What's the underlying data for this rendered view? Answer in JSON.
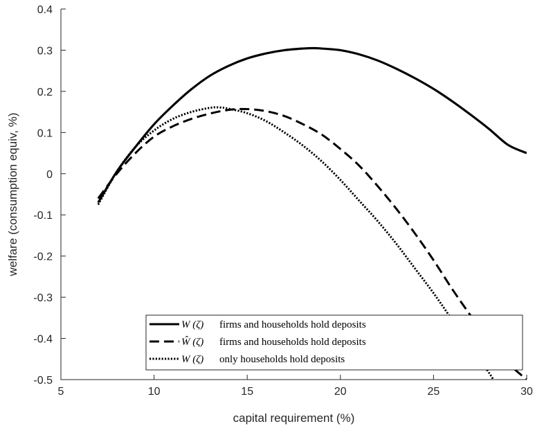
{
  "chart_data": {
    "type": "line",
    "title": "",
    "xlabel": "capital requirement (%)",
    "ylabel": "welfare (consumption equiv, %)",
    "xlim": [
      5,
      30
    ],
    "ylim": [
      -0.5,
      0.4
    ],
    "xticks": [
      5,
      10,
      15,
      20,
      25,
      30
    ],
    "xtick_labels": [
      "5",
      "10",
      "15",
      "20",
      "25",
      "30"
    ],
    "yticks": [
      -0.5,
      -0.4,
      -0.3,
      -0.2,
      -0.1,
      0,
      0.1,
      0.2,
      0.3,
      0.4
    ],
    "ytick_labels": [
      "-0.5",
      "-0.4",
      "-0.3",
      "-0.2",
      "-0.1",
      "0",
      "0.1",
      "0.2",
      "0.3",
      "0.4"
    ],
    "grid": false,
    "legend_position": "bottom-right",
    "series": [
      {
        "name": "W (ζ) firms and households hold deposits",
        "legend_math": "W (ζ)",
        "legend_text": "firms and households hold deposits",
        "style": "solid",
        "color": "#000000",
        "x": [
          7,
          8,
          9,
          10,
          11,
          12,
          13,
          14,
          15,
          16,
          17,
          18,
          18.6,
          19,
          20,
          21,
          22,
          23,
          24,
          25,
          26,
          27,
          28,
          29,
          30
        ],
        "y": [
          -0.07,
          0.005,
          0.065,
          0.12,
          0.165,
          0.205,
          0.238,
          0.262,
          0.28,
          0.292,
          0.3,
          0.304,
          0.305,
          0.304,
          0.3,
          0.29,
          0.275,
          0.255,
          0.232,
          0.206,
          0.176,
          0.143,
          0.108,
          0.07,
          0.05
        ]
      },
      {
        "name": "W-hat (ζ) firms and households hold deposits",
        "legend_math": "Ŵ (ζ)",
        "legend_text": "firms and households hold deposits",
        "style": "dashed",
        "color": "#000000",
        "x": [
          7,
          8,
          9,
          10,
          11,
          12,
          13,
          14,
          15,
          16,
          17,
          18,
          19,
          20,
          21,
          22,
          23,
          24,
          25,
          26,
          27,
          28,
          29,
          30
        ],
        "y": [
          -0.06,
          0.0,
          0.05,
          0.09,
          0.115,
          0.133,
          0.146,
          0.155,
          0.157,
          0.152,
          0.14,
          0.12,
          0.095,
          0.06,
          0.02,
          -0.03,
          -0.085,
          -0.145,
          -0.21,
          -0.28,
          -0.345,
          -0.405,
          -0.46,
          -0.5
        ]
      },
      {
        "name": "W (ζ) only households hold deposits",
        "legend_math": "W (ζ)",
        "legend_text": "only households hold deposits",
        "style": "dotted",
        "color": "#000000",
        "x": [
          7,
          8,
          9,
          10,
          11,
          12,
          13,
          13.5,
          14,
          15,
          16,
          17,
          18,
          19,
          20,
          21,
          22,
          23,
          24,
          25,
          26,
          27,
          28,
          28.2
        ],
        "y": [
          -0.075,
          0.005,
          0.065,
          0.105,
          0.133,
          0.15,
          0.16,
          0.161,
          0.158,
          0.147,
          0.128,
          0.1,
          0.068,
          0.03,
          -0.015,
          -0.065,
          -0.115,
          -0.17,
          -0.23,
          -0.29,
          -0.355,
          -0.42,
          -0.485,
          -0.5
        ]
      }
    ]
  }
}
